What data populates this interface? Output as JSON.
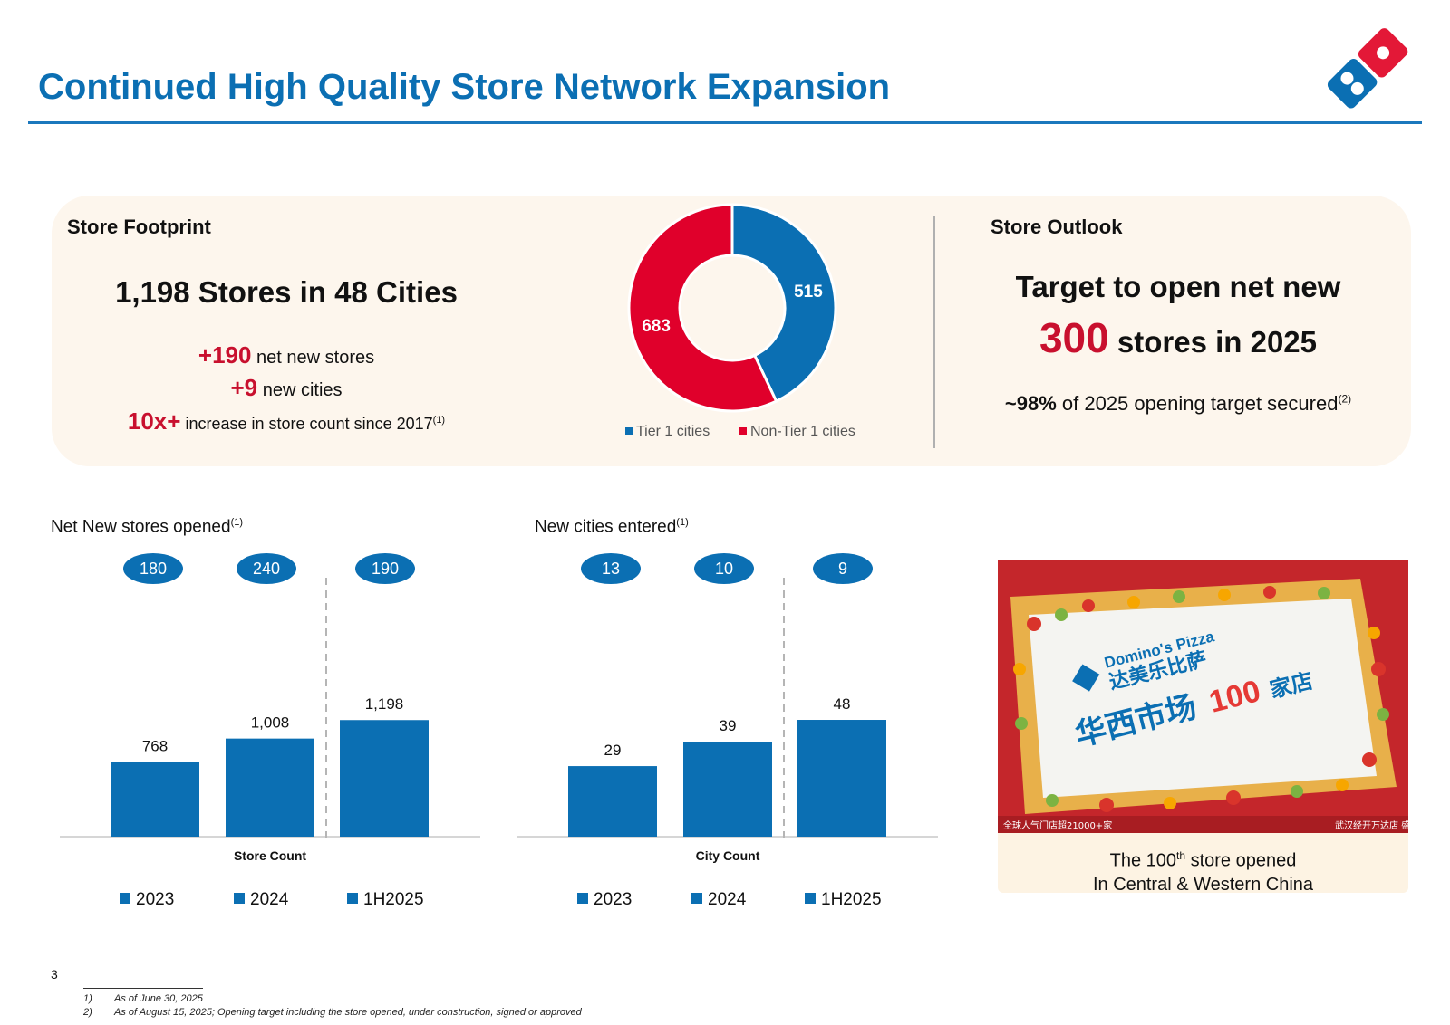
{
  "title": "Continued High Quality Store Network Expansion",
  "logo_icon": "dominos-domino-logo",
  "colors": {
    "blue": "#0b6fb3",
    "red": "#c8102e",
    "panel": "#fdf6ed"
  },
  "footprint": {
    "heading": "Store Footprint",
    "headline": "1,198 Stores in 48 Cities",
    "lines": [
      {
        "value": "+190",
        "text": "net new stores",
        "sup": ""
      },
      {
        "value": "+9",
        "text": "new cities",
        "sup": ""
      },
      {
        "value": "10x+",
        "text": "increase in store count since 2017",
        "sup": "(1)"
      }
    ]
  },
  "outlook": {
    "heading": "Store Outlook",
    "line1": "Target to open net new",
    "number": "300",
    "line2": "stores in 2025",
    "secured_value": "~98%",
    "secured_text": "of 2025 opening target secured",
    "secured_sup": "(2)"
  },
  "photo": {
    "caption_prefix": "The 100",
    "caption_sup": "th",
    "caption_suffix": " store opened",
    "caption_line2": "In Central & Western China",
    "cake_brand": "Domino's Pizza",
    "cake_cn_brand": "达美乐比萨",
    "cake_line": "华西市场",
    "cake_num": "100",
    "cake_suffix": "家店",
    "banner_left": "全球人气门店超21000+家",
    "banner_right": "武汉经开万达店 盛大开业"
  },
  "chart_data": [
    {
      "type": "pie",
      "categories": [
        "Tier 1 cities",
        "Non-Tier 1 cities"
      ],
      "values": [
        515,
        683
      ],
      "colors": [
        "#0b6fb3",
        "#e0002b"
      ],
      "legend": "bottom"
    },
    {
      "type": "bar",
      "title": "Net New stores opened",
      "title_sup": "(1)",
      "xlabel": "Store Count",
      "categories": [
        "2023",
        "2024",
        "1H2025"
      ],
      "values": [
        768,
        1008,
        1198
      ],
      "value_labels": [
        "768",
        "1,008",
        "1,198"
      ],
      "net_new": [
        "180",
        "240",
        "190"
      ],
      "ylim": [
        0,
        1400
      ],
      "legend": "bottom"
    },
    {
      "type": "bar",
      "title": "New cities entered",
      "title_sup": "(1)",
      "xlabel": "City Count",
      "categories": [
        "2023",
        "2024",
        "1H2025"
      ],
      "values": [
        29,
        39,
        48
      ],
      "value_labels": [
        "29",
        "39",
        "48"
      ],
      "net_new": [
        "13",
        "10",
        "9"
      ],
      "ylim": [
        0,
        56
      ],
      "legend": "bottom"
    }
  ],
  "page_number": "3",
  "footnotes": [
    {
      "num": "1)",
      "text": "As of June 30, 2025"
    },
    {
      "num": "2)",
      "text": "As of August 15, 2025; Opening target including the store opened, under construction, signed or approved"
    }
  ]
}
